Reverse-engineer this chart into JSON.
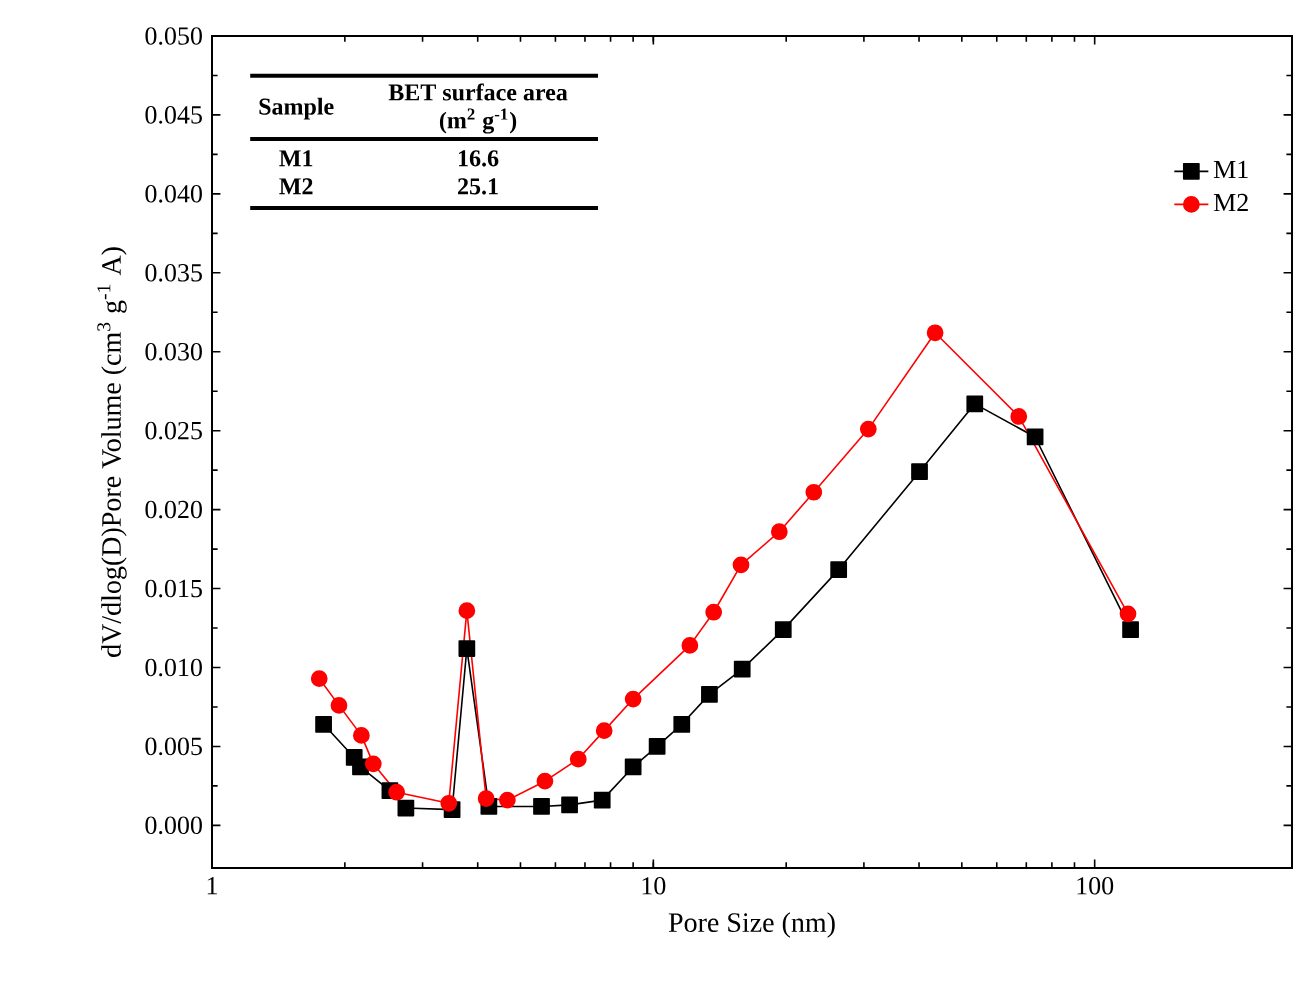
{
  "chart_data": {
    "type": "line",
    "xlabel": "Pore Size (nm)",
    "ylabel": "dV/dlog(D)Pore Volume (cm$^{3}$ g$^{-1}$ A)",
    "log": "x",
    "xlim": [
      1,
      280
    ],
    "xticks": [
      1,
      10,
      100
    ],
    "ylim": [
      -0.0027,
      0.05
    ],
    "yticks": [
      {
        "value": 0,
        "label": "0.000"
      },
      {
        "value": 0.005,
        "label": "0.005"
      },
      {
        "value": 0.01,
        "label": "0.010"
      },
      {
        "value": 0.015,
        "label": "0.015"
      },
      {
        "value": 0.02,
        "label": "0.020"
      },
      {
        "value": 0.025,
        "label": "0.025"
      },
      {
        "value": 0.03,
        "label": "0.030"
      },
      {
        "value": 0.035,
        "label": "0.035"
      },
      {
        "value": 0.04,
        "label": "0.040"
      },
      {
        "value": 0.045,
        "label": "0.045"
      },
      {
        "value": 0.05,
        "label": "0.050"
      }
    ],
    "legend": "top right",
    "line_style": "solid",
    "series": [
      {
        "name": "M1",
        "color": "#000000",
        "marker": "square",
        "x": [
          1.79,
          2.1,
          2.17,
          2.53,
          2.75,
          3.5,
          3.78,
          4.24,
          5.58,
          6.46,
          7.66,
          9.0,
          10.2,
          11.6,
          13.4,
          15.9,
          19.7,
          26.3,
          40.1,
          53.5,
          73.3,
          120.6
        ],
        "values": [
          0.0064,
          0.0043,
          0.0037,
          0.0022,
          0.0011,
          0.001,
          0.0112,
          0.0012,
          0.0012,
          0.0013,
          0.0016,
          0.0037,
          0.005,
          0.0064,
          0.0083,
          0.0099,
          0.0124,
          0.0162,
          0.0224,
          0.0267,
          0.0246,
          0.0124
        ]
      },
      {
        "name": "M2",
        "color": "#ff0000",
        "marker": "circle",
        "x": [
          1.75,
          1.94,
          2.18,
          2.32,
          2.62,
          3.44,
          3.78,
          4.18,
          4.67,
          5.68,
          6.76,
          7.74,
          9.0,
          12.1,
          13.7,
          15.8,
          19.3,
          23.1,
          30.7,
          43.5,
          67.3,
          119
        ],
        "values": [
          0.0093,
          0.0076,
          0.0057,
          0.0039,
          0.0021,
          0.0014,
          0.0136,
          0.0017,
          0.0016,
          0.0028,
          0.0042,
          0.006,
          0.008,
          0.0114,
          0.0135,
          0.0165,
          0.0186,
          0.0211,
          0.0251,
          0.0312,
          0.0259,
          0.0134
        ]
      }
    ],
    "annotations": [
      "Sample",
      "BET surface area (m$^{2}$ g$^{-1}$)",
      "M1",
      "16.6",
      "M2",
      "25.1"
    ]
  }
}
